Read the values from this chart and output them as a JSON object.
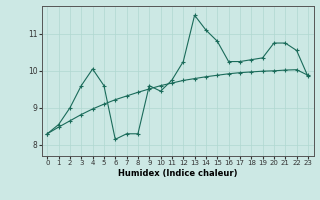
{
  "xlabel": "Humidex (Indice chaleur)",
  "ylabel": "",
  "bg_color": "#cce8e4",
  "line_color": "#1a6b5a",
  "grid_color": "#b0d8d0",
  "xlim": [
    -0.5,
    23.5
  ],
  "ylim": [
    7.7,
    11.75
  ],
  "yticks": [
    8,
    9,
    10,
    11
  ],
  "xticks": [
    0,
    1,
    2,
    3,
    4,
    5,
    6,
    7,
    8,
    9,
    10,
    11,
    12,
    13,
    14,
    15,
    16,
    17,
    18,
    19,
    20,
    21,
    22,
    23
  ],
  "jagged_x": [
    0,
    1,
    2,
    3,
    4,
    5,
    6,
    7,
    8,
    9,
    10,
    11,
    12,
    13,
    14,
    15,
    16,
    17,
    18,
    19,
    20,
    21,
    22,
    23
  ],
  "jagged_y": [
    8.3,
    8.55,
    9.0,
    9.6,
    10.05,
    9.6,
    8.15,
    8.3,
    8.3,
    9.6,
    9.45,
    9.75,
    10.25,
    11.5,
    11.1,
    10.8,
    10.25,
    10.25,
    10.3,
    10.35,
    10.75,
    10.75,
    10.55,
    9.85
  ],
  "smooth_x": [
    0,
    1,
    2,
    3,
    4,
    5,
    6,
    7,
    8,
    9,
    10,
    11,
    12,
    13,
    14,
    15,
    16,
    17,
    18,
    19,
    20,
    21,
    22,
    23
  ],
  "smooth_y": [
    8.3,
    8.48,
    8.65,
    8.82,
    8.97,
    9.1,
    9.22,
    9.32,
    9.42,
    9.51,
    9.6,
    9.67,
    9.74,
    9.79,
    9.84,
    9.88,
    9.92,
    9.95,
    9.97,
    9.99,
    10.0,
    10.02,
    10.03,
    9.88
  ]
}
